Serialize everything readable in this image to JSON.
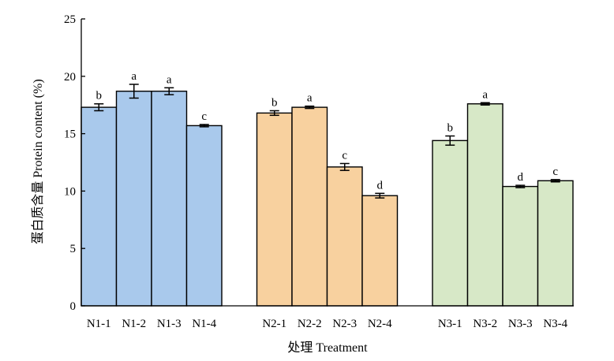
{
  "chart_data": {
    "type": "bar",
    "categories": [
      "N1-1",
      "N1-2",
      "N1-3",
      "N1-4",
      "N2-1",
      "N2-2",
      "N2-3",
      "N2-4",
      "N3-1",
      "N3-2",
      "N3-3",
      "N3-4"
    ],
    "group_index": [
      0,
      0,
      0,
      0,
      1,
      1,
      1,
      1,
      2,
      2,
      2,
      2
    ],
    "values": [
      17.3,
      18.7,
      18.7,
      15.7,
      16.8,
      17.3,
      12.1,
      9.6,
      14.4,
      17.6,
      10.4,
      10.9
    ],
    "errors": [
      0.3,
      0.6,
      0.3,
      0.1,
      0.2,
      0.1,
      0.3,
      0.2,
      0.4,
      0.1,
      0.1,
      0.1
    ],
    "letters": [
      "b",
      "a",
      "a",
      "c",
      "b",
      "a",
      "c",
      "d",
      "b",
      "a",
      "d",
      "c"
    ],
    "group_colors": [
      "#a9c9ec",
      "#f8d19f",
      "#d7e8c7"
    ],
    "xlabel": "处理 Treatment",
    "ylabel": "蛋白质含量 Protein content (%)",
    "ylim": [
      0,
      25
    ],
    "yticks": [
      0,
      5,
      10,
      15,
      20,
      25
    ],
    "grid": false
  }
}
